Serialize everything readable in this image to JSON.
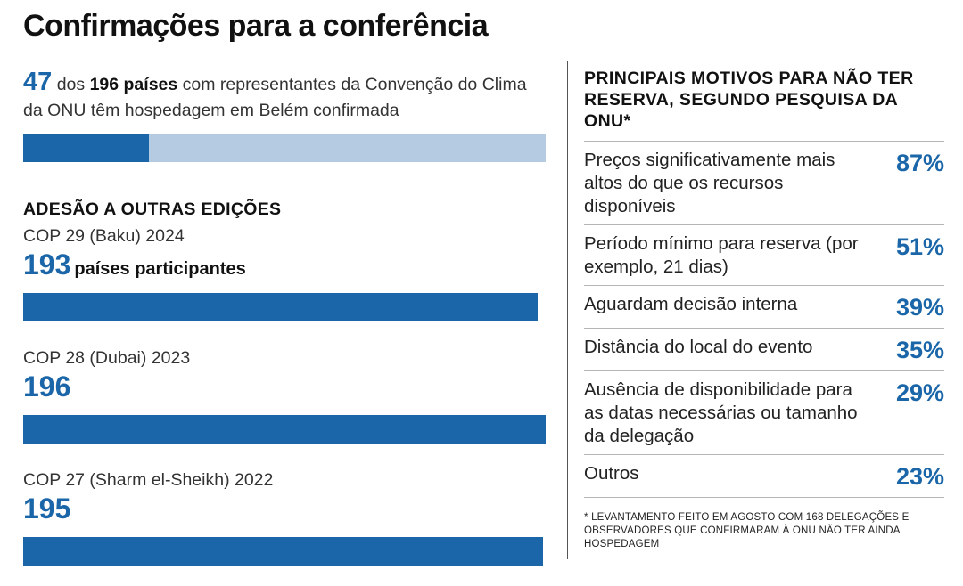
{
  "title": "Confirmações para a conferência",
  "colors": {
    "accent": "#1a66a8",
    "light": "#b4cbe1"
  },
  "intro": {
    "confirmed": "47",
    "text_before_total": "dos",
    "total": "196 países",
    "text_after_total": "com representantes da Convenção do Clima da ONU têm hospedagem em Belém confirmada"
  },
  "editions_heading": "ADESÃO A OUTRAS EDIÇÕES",
  "reasons_heading": "PRINCIPAIS MOTIVOS PARA NÃO TER RESERVA, SEGUNDO PESQUISA DA ONU*",
  "footnote": "* LEVANTAMENTO FEITO EM AGOSTO COM 168 DELEGAÇÕES E OBSERVADORES QUE CONFIRMARAM À ONU NÃO TER AINDA HOSPEDAGEM",
  "chart_data": [
    {
      "type": "bar",
      "orientation": "horizontal",
      "categories": [
        "Belém (hospedagem confirmada)"
      ],
      "values": [
        47
      ],
      "max": 196,
      "title": ""
    },
    {
      "type": "bar",
      "orientation": "horizontal",
      "title": "ADESÃO A OUTRAS EDIÇÕES",
      "max": 196,
      "categories": [
        "COP 29 (Baku) 2024",
        "COP 28 (Dubai) 2023",
        "COP 27 (Sharm el-Sheikh) 2022"
      ],
      "values": [
        193,
        196,
        195
      ],
      "value_suffixes": [
        "países participantes",
        "",
        ""
      ]
    },
    {
      "type": "table",
      "title": "PRINCIPAIS MOTIVOS PARA NÃO TER RESERVA, SEGUNDO PESQUISA DA ONU*",
      "rows": [
        {
          "label": "Preços significativamente mais altos do que os recursos disponíveis",
          "value": "87%"
        },
        {
          "label": "Período mínimo para reserva (por exemplo, 21 dias)",
          "value": "51%"
        },
        {
          "label": "Aguardam decisão interna",
          "value": "39%"
        },
        {
          "label": "Distância do local do evento",
          "value": "35%"
        },
        {
          "label": "Ausência de disponibilidade para as datas necessárias ou tamanho da delegação",
          "value": "29%"
        },
        {
          "label": "Outros",
          "value": "23%"
        }
      ]
    }
  ]
}
